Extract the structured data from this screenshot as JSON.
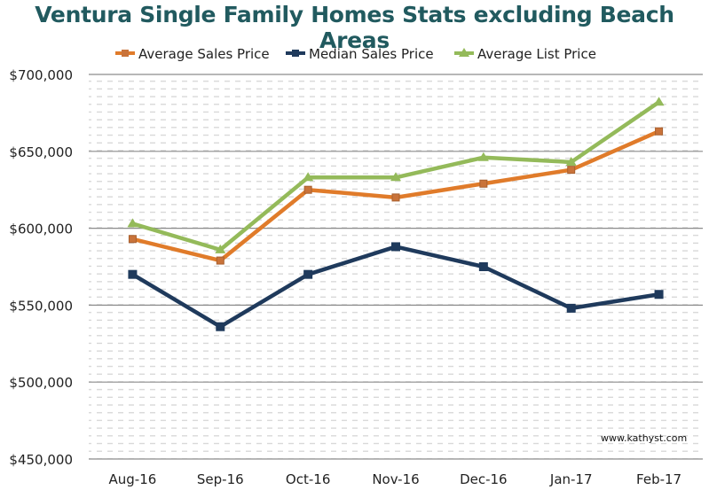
{
  "chart_data": {
    "type": "line",
    "title": "Ventura Single Family Homes Stats excluding Beach Areas",
    "xlabel": "",
    "ylabel": "",
    "categories": [
      "Aug-16",
      "Sep-16",
      "Oct-16",
      "Nov-16",
      "Dec-16",
      "Jan-17",
      "Feb-17"
    ],
    "ylim": [
      450000,
      700000
    ],
    "yticks": [
      450000,
      500000,
      550000,
      600000,
      650000,
      700000
    ],
    "ytick_labels": [
      "$450,000",
      "$500,000",
      "$550,000",
      "$600,000",
      "$650,000",
      "$700,000"
    ],
    "grid": true,
    "legend_position": "top",
    "series": [
      {
        "name": "Average Sales Price",
        "color": "#e07b2a",
        "marker": "square",
        "values": [
          593000,
          579000,
          625000,
          620000,
          629000,
          638000,
          663000
        ]
      },
      {
        "name": "Median Sales Price",
        "color": "#1f3a5c",
        "marker": "square",
        "values": [
          570000,
          536000,
          570000,
          588000,
          575000,
          548000,
          557000
        ]
      },
      {
        "name": "Average List Price",
        "color": "#94ba5a",
        "marker": "triangle",
        "values": [
          603000,
          586000,
          633000,
          633000,
          646000,
          643000,
          682000
        ]
      }
    ],
    "annotations": [
      "www.kathyst.com"
    ]
  }
}
